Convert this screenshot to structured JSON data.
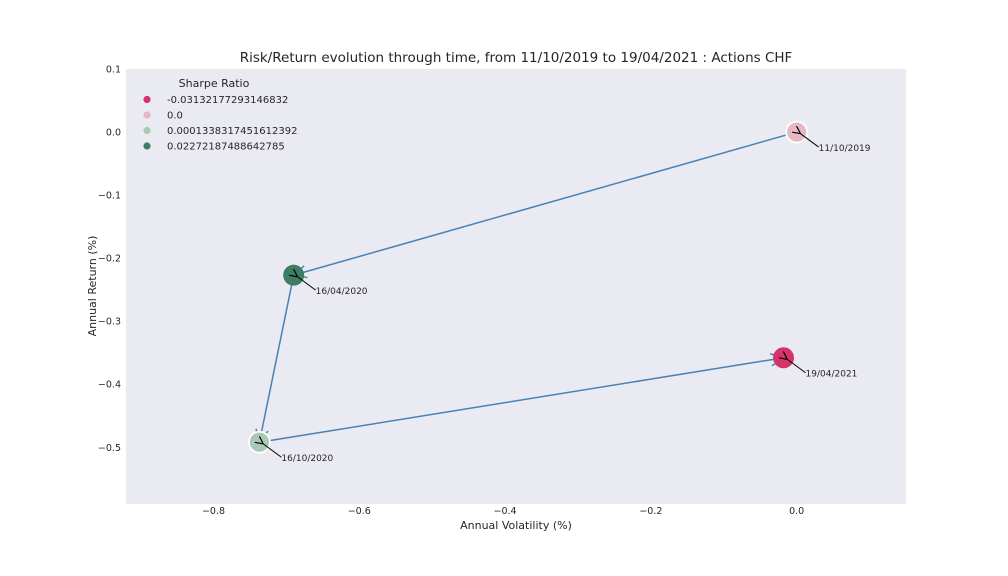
{
  "chart_data": {
    "type": "scatter",
    "title": "Risk/Return evolution through time, from 11/10/2019 to 19/04/2021 : Actions CHF",
    "xlabel": "Annual Volatility (%)",
    "ylabel": "Annual Return (%)",
    "xlim": [
      -0.92,
      0.15
    ],
    "ylim": [
      -0.59,
      0.1
    ],
    "xticks": [
      -0.8,
      -0.6,
      -0.4,
      -0.2,
      0.0
    ],
    "xtick_labels": [
      "−0.8",
      "−0.6",
      "−0.4",
      "−0.2",
      "0.0"
    ],
    "yticks": [
      0.1,
      0.0,
      -0.1,
      -0.2,
      -0.3,
      -0.4,
      -0.5
    ],
    "ytick_labels": [
      "0.1",
      "0.0",
      "−0.1",
      "−0.2",
      "−0.3",
      "−0.4",
      "−0.5"
    ],
    "grid": false,
    "background": "#eaeaf2",
    "arrow_color": "#4682b4",
    "legend": {
      "title": "Sharpe Ratio",
      "placement": "top-left",
      "entries": [
        {
          "label": "-0.03132177293146832",
          "color": "#d6336c"
        },
        {
          "label": "0.0",
          "color": "#e7b7c3"
        },
        {
          "label": "0.0001338317451612392",
          "color": "#a9c9b6"
        },
        {
          "label": "0.02272187488642785",
          "color": "#3e7d62"
        }
      ]
    },
    "points": [
      {
        "x": 0.0,
        "y": 0.0,
        "date": "11/10/2019",
        "color": "#e7b7c3",
        "ring": true
      },
      {
        "x": -0.69,
        "y": -0.227,
        "date": "16/04/2020",
        "color": "#3e7d62",
        "ring": false
      },
      {
        "x": -0.737,
        "y": -0.492,
        "date": "16/10/2020",
        "color": "#a9c9b6",
        "ring": true
      },
      {
        "x": -0.018,
        "y": -0.358,
        "date": "19/04/2021",
        "color": "#d6336c",
        "ring": false
      }
    ]
  }
}
